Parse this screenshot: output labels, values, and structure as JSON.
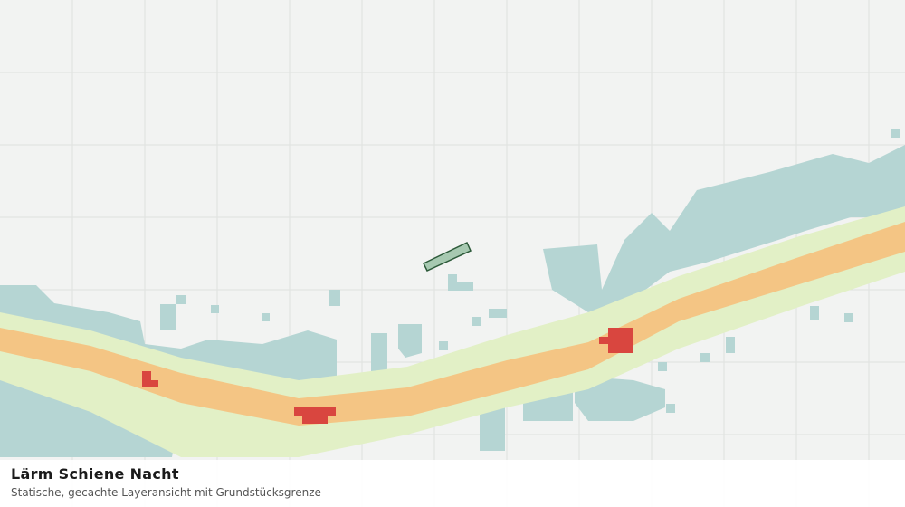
{
  "title": "Lärm Schiene Nacht",
  "subtitle": "Statische, gecachte Layeransicht mit Grundstücksgrenze"
}
